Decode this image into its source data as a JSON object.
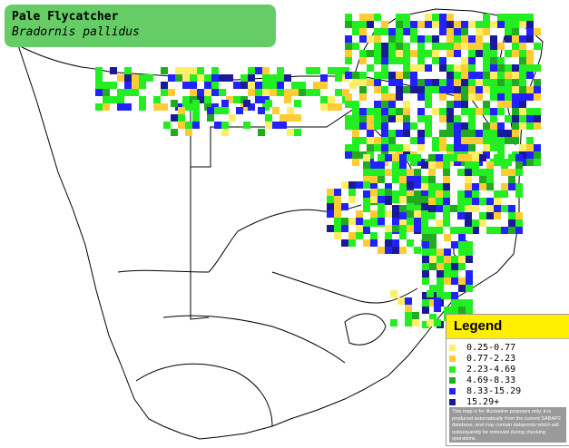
{
  "title": {
    "common_name": "Pale Flycatcher",
    "scientific_name": "Bradornis pallidus"
  },
  "legend": {
    "title": "Legend",
    "items": [
      {
        "label": "0.25-0.77",
        "color": "#ffee66"
      },
      {
        "label": "0.77-2.23",
        "color": "#ffcc33"
      },
      {
        "label": "2.23-4.69",
        "color": "#22ee22"
      },
      {
        "label": "4.69-8.33",
        "color": "#22aa22"
      },
      {
        "label": "8.33-15.29",
        "color": "#2222ff"
      },
      {
        "label": "15.29+",
        "color": "#1a1a99"
      }
    ],
    "note": "This map is for illustrative purposes only; it is produced automatically from the current SABAP2 database, and may contain datapoints which will subsequently be removed during checking operations."
  },
  "map": {
    "background": "#ffffff",
    "border_color": "#000000"
  }
}
